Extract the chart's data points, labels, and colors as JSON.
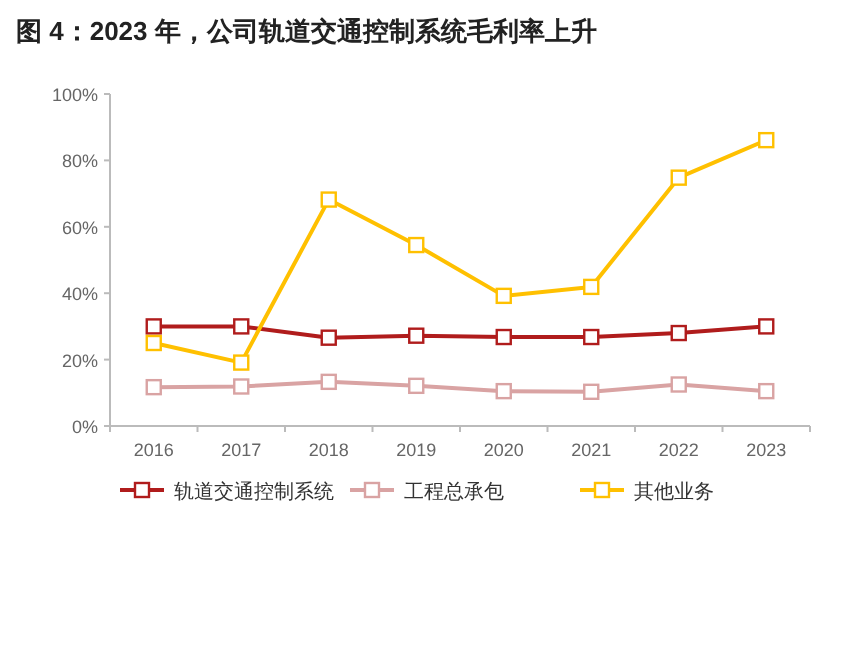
{
  "chart_data": {
    "type": "line",
    "title": "图 4：2023 年，公司轨道交通控制系统毛利率上升",
    "categories": [
      "2016",
      "2017",
      "2018",
      "2019",
      "2020",
      "2021",
      "2022",
      "2023"
    ],
    "series": [
      {
        "name": "轨道交通控制系统",
        "color": "#b01c1c",
        "values": [
          30.0,
          30.0,
          26.6,
          27.2,
          26.8,
          26.8,
          28.0,
          30.0
        ]
      },
      {
        "name": "工程总承包",
        "color": "#d9a3a3",
        "values": [
          11.7,
          11.9,
          13.3,
          12.1,
          10.5,
          10.3,
          12.5,
          10.5
        ]
      },
      {
        "name": "其他业务",
        "color": "#ffc000",
        "values": [
          25.0,
          19.1,
          68.2,
          54.5,
          39.2,
          41.9,
          74.8,
          86.1
        ]
      }
    ],
    "ylim": [
      0,
      100
    ],
    "yticks": [
      {
        "value": 0,
        "label": "0%"
      },
      {
        "value": 20,
        "label": "20%"
      },
      {
        "value": 40,
        "label": "40%"
      },
      {
        "value": 60,
        "label": "60%"
      },
      {
        "value": 80,
        "label": "80%"
      },
      {
        "value": 100,
        "label": "100%"
      }
    ],
    "marker": "square",
    "line_style": "solid",
    "grid": false,
    "legend": "bottom"
  }
}
